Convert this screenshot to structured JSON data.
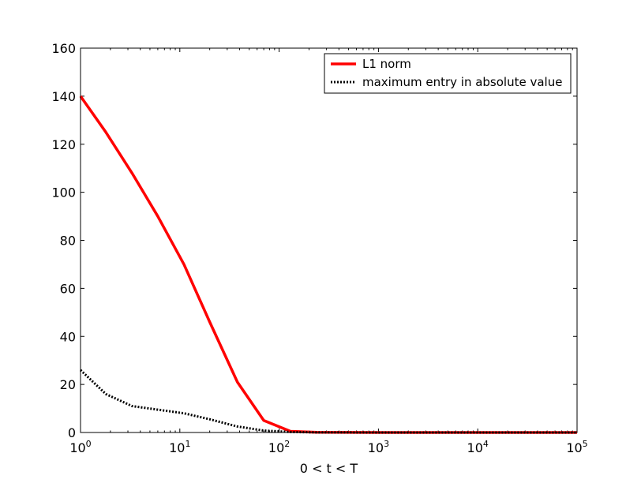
{
  "chart_data": {
    "type": "line",
    "xscale": "log",
    "xlim": [
      1,
      100000
    ],
    "ylim": [
      0,
      160
    ],
    "xlabel": "0 < t < T",
    "ylabel": "",
    "title": "",
    "legend_position": "top-right",
    "grid": false,
    "xticks": [
      {
        "value": 1,
        "base": "10",
        "exp": "0"
      },
      {
        "value": 10,
        "base": "10",
        "exp": "1"
      },
      {
        "value": 100,
        "base": "10",
        "exp": "2"
      },
      {
        "value": 1000,
        "base": "10",
        "exp": "3"
      },
      {
        "value": 10000,
        "base": "10",
        "exp": "4"
      },
      {
        "value": 100000,
        "base": "10",
        "exp": "5"
      }
    ],
    "yticks": [
      {
        "value": 0,
        "label": "0"
      },
      {
        "value": 20,
        "label": "20"
      },
      {
        "value": 40,
        "label": "40"
      },
      {
        "value": 60,
        "label": "60"
      },
      {
        "value": 80,
        "label": "80"
      },
      {
        "value": 100,
        "label": "100"
      },
      {
        "value": 120,
        "label": "120"
      },
      {
        "value": 140,
        "label": "140"
      },
      {
        "value": 160,
        "label": "160"
      }
    ],
    "series": [
      {
        "name": "L1 norm",
        "color": "#ff0000",
        "style": "solid",
        "x": [
          1,
          1.8,
          3.3,
          6,
          11,
          20,
          38,
          70,
          130,
          240,
          1000,
          10000,
          100000
        ],
        "y": [
          140,
          125,
          108,
          90,
          70,
          46,
          21,
          5,
          0.5,
          0.1,
          0,
          0,
          0
        ]
      },
      {
        "name": "maximum entry in absolute value",
        "color": "#000000",
        "style": "dotted",
        "x": [
          1,
          1.8,
          3.3,
          6,
          11,
          20,
          38,
          70,
          130,
          240,
          1000,
          10000,
          100000
        ],
        "y": [
          26,
          16,
          11,
          9.5,
          8,
          5.5,
          2.5,
          0.8,
          0.2,
          0.05,
          0,
          0,
          0
        ]
      }
    ]
  }
}
